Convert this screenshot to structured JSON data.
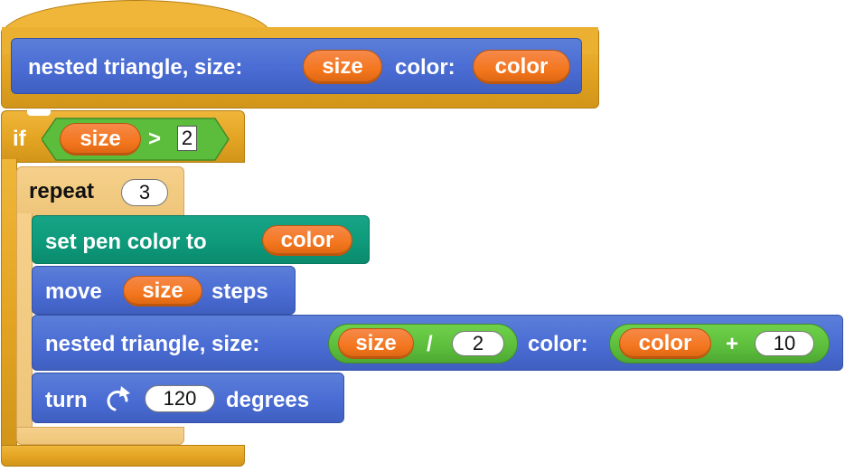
{
  "hat": {
    "label_prefix": "nested triangle, size:",
    "param_size": "size",
    "label_color": "color:",
    "param_color": "color"
  },
  "if_block": {
    "keyword": "if",
    "var": "size",
    "operator": ">",
    "value": "2"
  },
  "repeat_block": {
    "keyword": "repeat",
    "count": "3"
  },
  "set_pen": {
    "label": "set pen color to",
    "var": "color"
  },
  "move": {
    "label": "move",
    "var": "size",
    "suffix": "steps"
  },
  "recursive_call": {
    "label_prefix": "nested triangle, size:",
    "size_var": "size",
    "div_op": "/",
    "div_value": "2",
    "label_color": "color:",
    "color_var": "color",
    "plus_op": "+",
    "plus_value": "10"
  },
  "turn": {
    "label": "turn",
    "icon": "rotate-clockwise-icon",
    "degrees": "120",
    "suffix": "degrees"
  },
  "colors": {
    "control": "#e4a422",
    "control_light": "#eec579",
    "motion": "#4a6cd4",
    "pen": "#0e9a7b",
    "operators": "#5cbd3c",
    "variables": "#f3761d"
  }
}
